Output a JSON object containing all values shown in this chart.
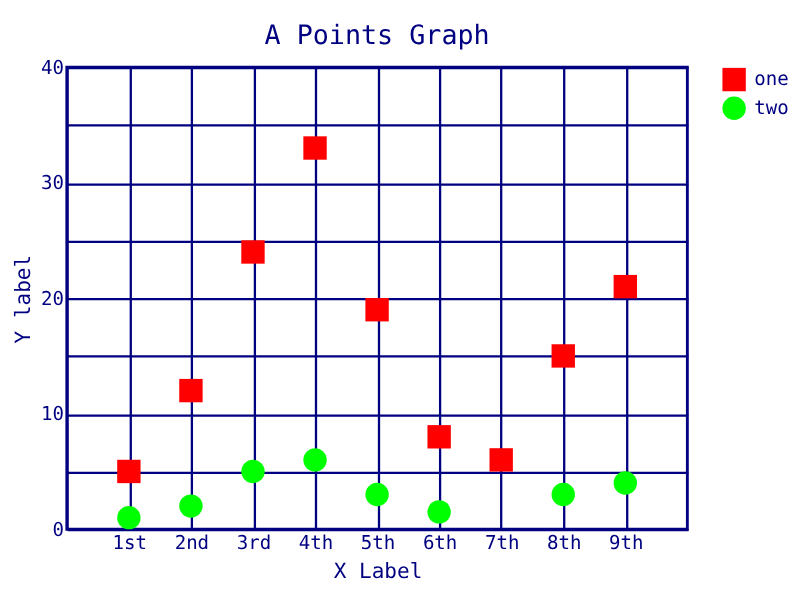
{
  "chart_data": {
    "type": "scatter",
    "title": "A Points Graph",
    "xlabel": "X Label",
    "ylabel": "Y label",
    "categories": [
      "1st",
      "2nd",
      "3rd",
      "4th",
      "5th",
      "6th",
      "7th",
      "8th",
      "9th"
    ],
    "series": [
      {
        "name": "one",
        "color": "#ff0000",
        "marker": "square",
        "values": [
          5,
          12,
          24,
          33,
          19,
          8,
          6,
          15,
          21
        ]
      },
      {
        "name": "two",
        "color": "#00ff00",
        "marker": "circle",
        "values": [
          1,
          2,
          5,
          6,
          3,
          1.5,
          null,
          3,
          4
        ]
      }
    ],
    "ylim": [
      0,
      40
    ],
    "yticks": [
      0,
      {
        "value": 5,
        "label": null
      },
      10,
      {
        "value": 15,
        "label": null
      },
      20,
      {
        "value": 25,
        "label": null
      },
      30,
      {
        "value": 35,
        "label": null
      },
      40
    ],
    "grid": true,
    "legend": "right"
  }
}
